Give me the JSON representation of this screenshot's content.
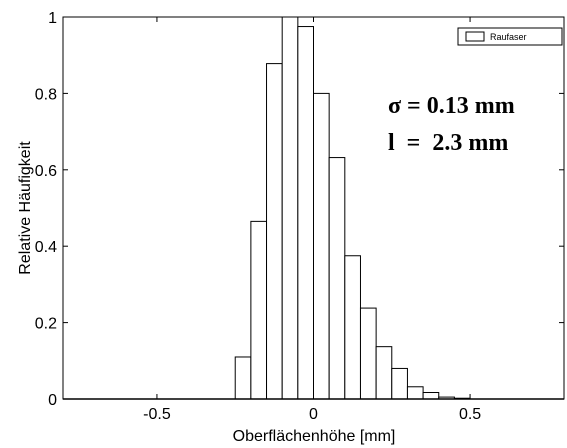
{
  "chart_data": {
    "type": "bar",
    "xlabel": "Oberflächenhöhe [mm]",
    "ylabel": "Relative Häufigkeit",
    "xlim": [
      -0.8,
      0.8
    ],
    "ylim": [
      0,
      1
    ],
    "xticks": [
      -0.5,
      0,
      0.5
    ],
    "xtick_labels": [
      "-0.5",
      "0",
      "0.5"
    ],
    "yticks": [
      0,
      0.2,
      0.4,
      0.6,
      0.8,
      1
    ],
    "ytick_labels": [
      "0",
      "0.2",
      "0.4",
      "0.6",
      "0.8",
      "1"
    ],
    "bin_width": 0.05,
    "bin_centers": [
      -0.225,
      -0.175,
      -0.125,
      -0.075,
      -0.025,
      0.025,
      0.075,
      0.125,
      0.175,
      0.225,
      0.275,
      0.325,
      0.375,
      0.425,
      0.475
    ],
    "series": [
      {
        "name": "Raufaser",
        "values": [
          0.11,
          0.465,
          0.878,
          1.0,
          0.975,
          0.8,
          0.632,
          0.375,
          0.238,
          0.137,
          0.08,
          0.032,
          0.017,
          0.005,
          0.002
        ]
      }
    ],
    "legend_position": "top-right",
    "annotations": [
      "σ = 0.13 mm",
      "l  =  2.3 mm"
    ],
    "grid": false
  }
}
